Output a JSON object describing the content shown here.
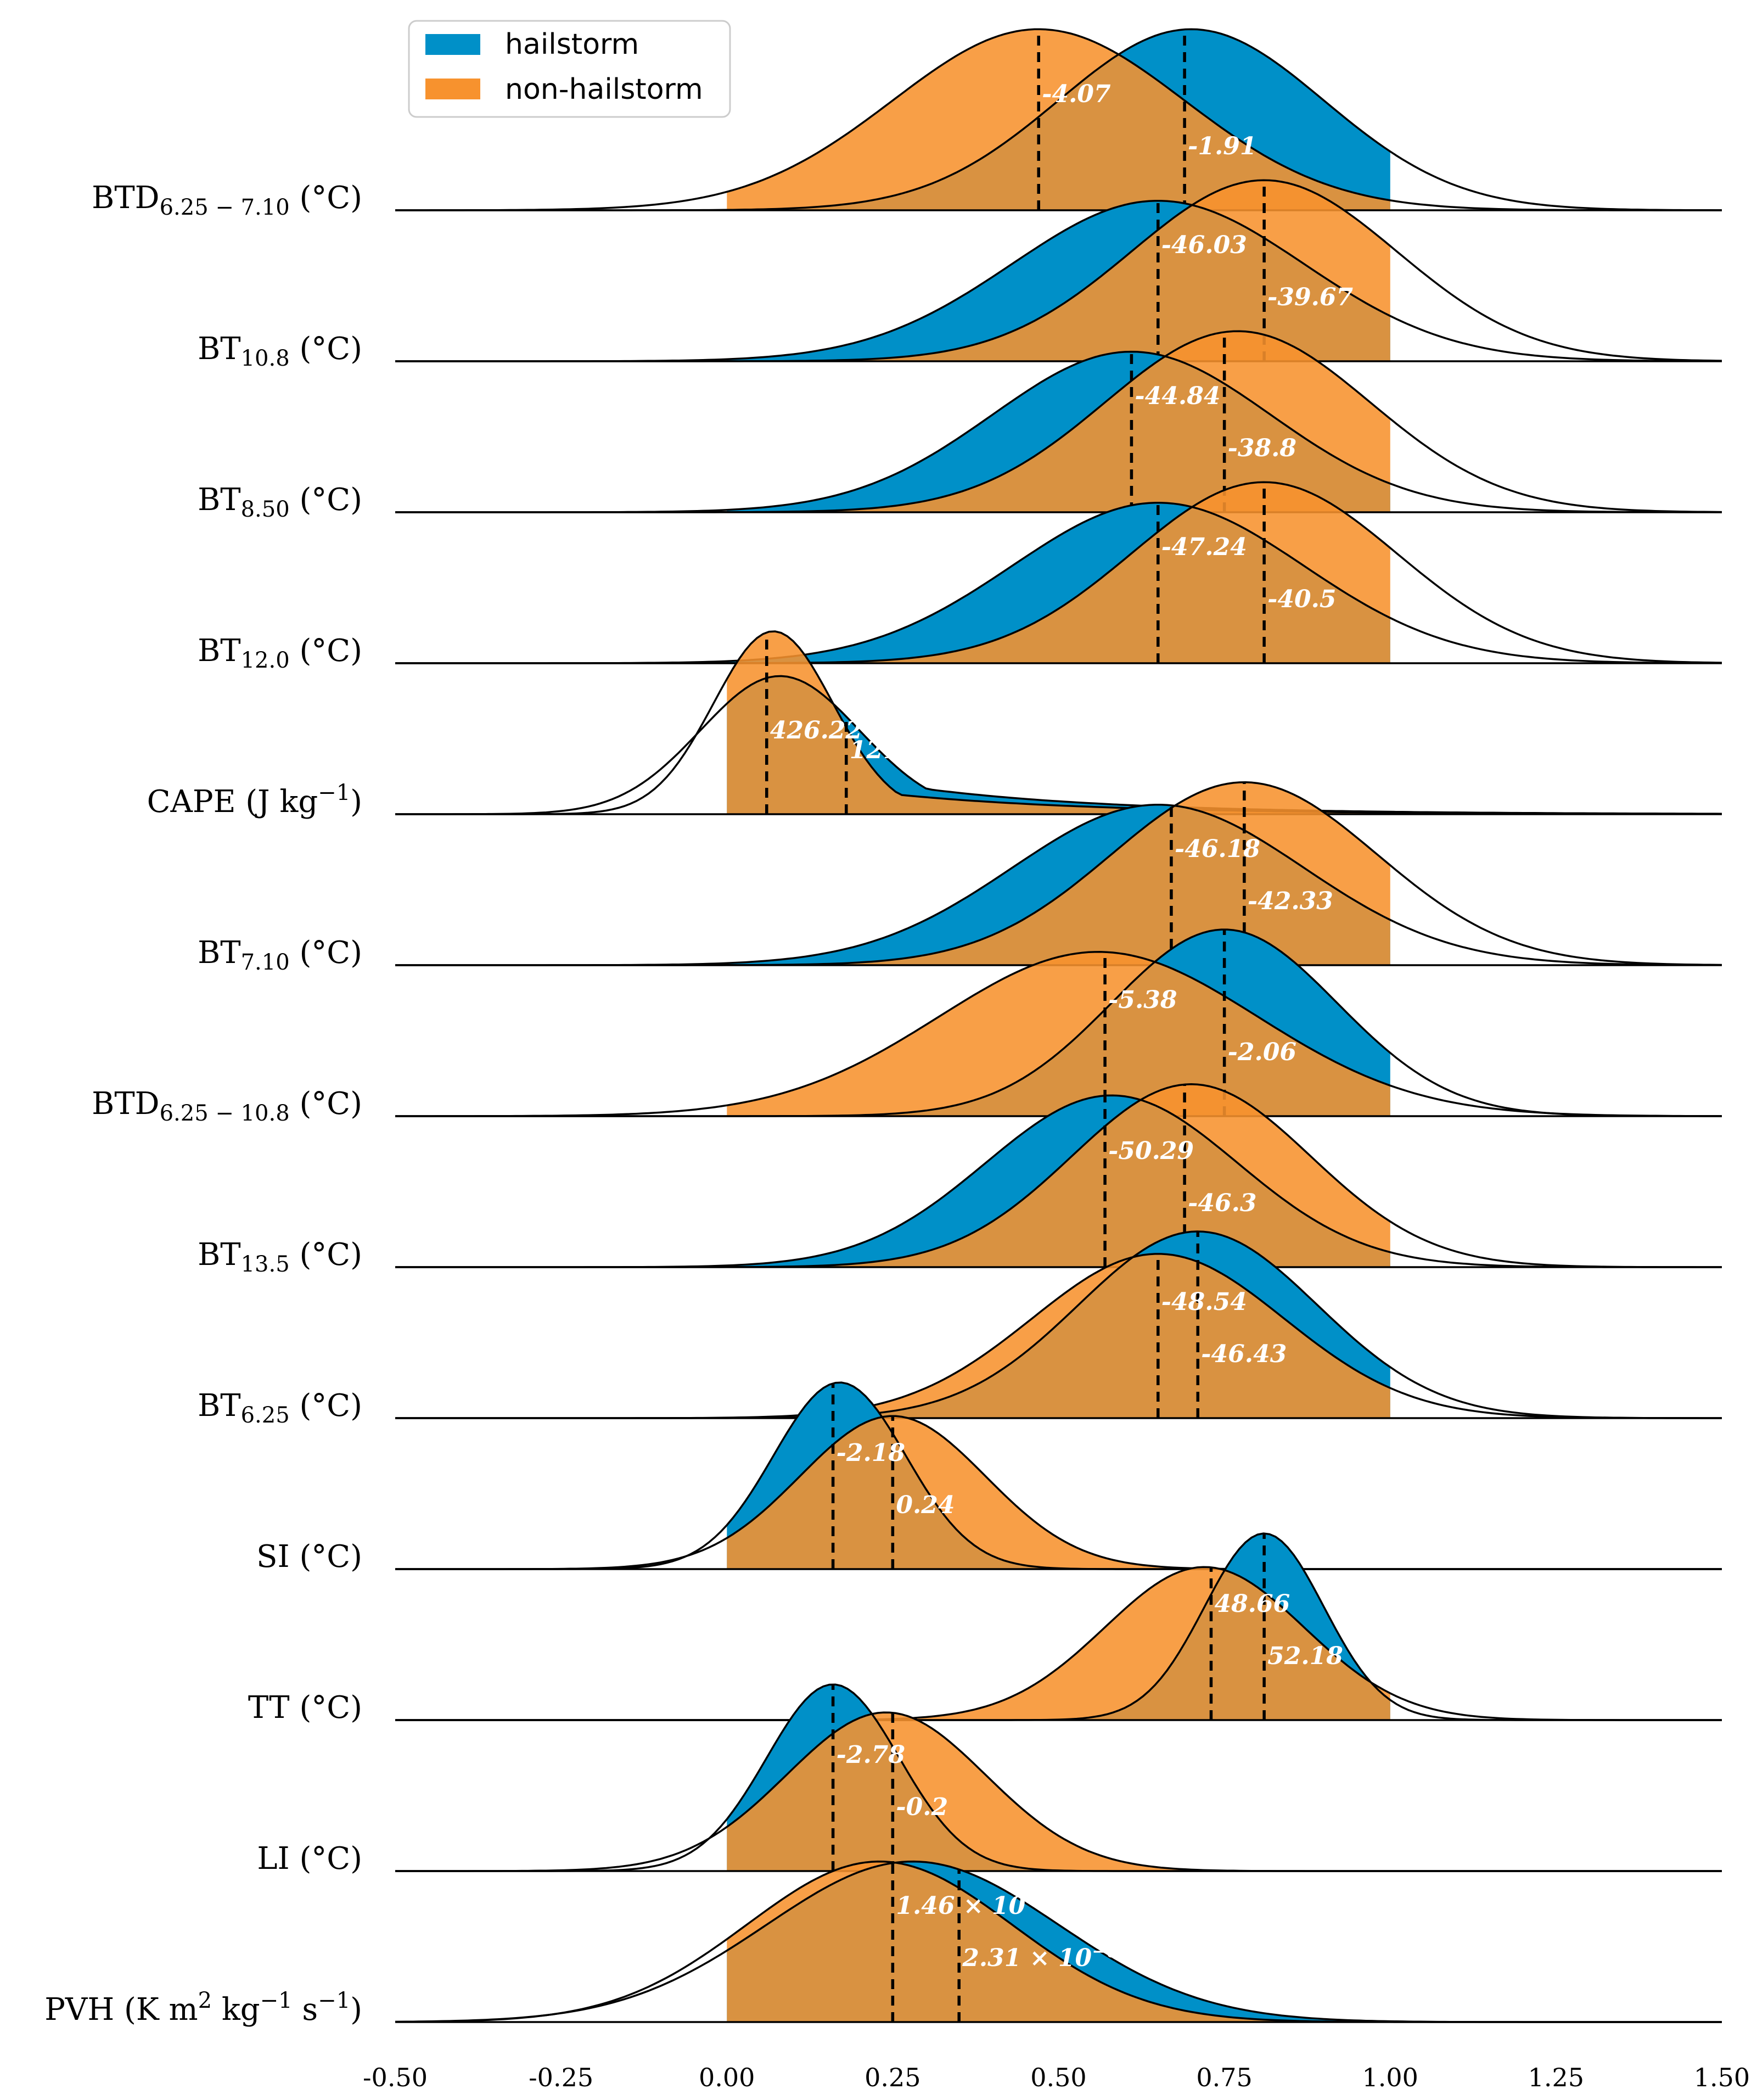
{
  "colors": {
    "hailstorm": "#0090c8",
    "non_hailstorm": "#f7922e"
  },
  "chart_data": {
    "type": "ridgeline",
    "title": "",
    "xlabel": "",
    "xlim": [
      -0.5,
      1.5
    ],
    "x_ticks": [
      "-0.50",
      "-0.25",
      "0.00",
      "0.25",
      "0.50",
      "0.75",
      "1.00",
      "1.25",
      "1.50"
    ],
    "legend": {
      "position": "top-left",
      "entries": [
        "hailstorm",
        "non-hailstorm"
      ]
    },
    "series_names": [
      "hailstorm",
      "non-hailstorm"
    ],
    "rows": [
      {
        "label": {
          "base": "BTD",
          "sub": "6.25 − 7.10",
          "unit": " (°C)"
        },
        "hail": {
          "peak": 0.7,
          "sd": 0.2,
          "height": 0.97,
          "median": 0.69,
          "label": "-1.91"
        },
        "non": {
          "peak": 0.47,
          "sd": 0.22,
          "height": 0.97,
          "median": 0.47,
          "label": "-4.07"
        }
      },
      {
        "label": {
          "base": "BT",
          "sub": "10.8",
          "unit": " (°C)"
        },
        "hail": {
          "peak": 0.65,
          "sd": 0.22,
          "height": 0.86,
          "median": 0.65,
          "label": "-46.03"
        },
        "non": {
          "peak": 0.81,
          "sd": 0.2,
          "height": 0.97,
          "median": 0.81,
          "label": "-39.67"
        }
      },
      {
        "label": {
          "base": "BT",
          "sub": "8.50",
          "unit": " (°C)"
        },
        "hail": {
          "peak": 0.61,
          "sd": 0.21,
          "height": 0.86,
          "median": 0.61,
          "label": "-44.84"
        },
        "non": {
          "peak": 0.77,
          "sd": 0.2,
          "height": 0.97,
          "median": 0.75,
          "label": "-38.8"
        }
      },
      {
        "label": {
          "base": "BT",
          "sub": "12.0",
          "unit": " (°C)"
        },
        "hail": {
          "peak": 0.65,
          "sd": 0.22,
          "height": 0.86,
          "median": 0.65,
          "label": "-47.24"
        },
        "non": {
          "peak": 0.81,
          "sd": 0.2,
          "height": 0.97,
          "median": 0.81,
          "label": "-40.5"
        }
      },
      {
        "label": {
          "base": "CAPE",
          "sub": "",
          "unit": " (J kg",
          "sup": "−1",
          "tail": ")"
        },
        "hail": {
          "peak": 0.08,
          "sd": 0.12,
          "height": 0.74,
          "tail": 0.38,
          "median": 0.18,
          "label": "1213.09"
        },
        "non": {
          "peak": 0.07,
          "sd": 0.09,
          "height": 0.98,
          "tail": 0.2,
          "median": 0.06,
          "label": "426.22"
        }
      },
      {
        "label": {
          "base": "BT",
          "sub": "7.10",
          "unit": " (°C)"
        },
        "hail": {
          "peak": 0.65,
          "sd": 0.22,
          "height": 0.86,
          "median": 0.67,
          "label": "-46.18"
        },
        "non": {
          "peak": 0.78,
          "sd": 0.2,
          "height": 0.98,
          "median": 0.78,
          "label": "-42.33"
        }
      },
      {
        "label": {
          "base": "BTD",
          "sub": "6.25 − 10.8",
          "unit": " (°C)"
        },
        "hail": {
          "peak": 0.75,
          "sd": 0.17,
          "height": 1.0,
          "median": 0.75,
          "label": "-2.06"
        },
        "non": {
          "peak": 0.56,
          "sd": 0.24,
          "height": 0.88,
          "median": 0.57,
          "label": "-5.38"
        }
      },
      {
        "label": {
          "base": "BT",
          "sub": "13.5",
          "unit": " (°C)"
        },
        "hail": {
          "peak": 0.58,
          "sd": 0.19,
          "height": 0.92,
          "median": 0.57,
          "label": "-50.29"
        },
        "non": {
          "peak": 0.7,
          "sd": 0.18,
          "height": 0.98,
          "median": 0.69,
          "label": "-46.3"
        }
      },
      {
        "label": {
          "base": "BT",
          "sub": "6.25",
          "unit": " (°C)"
        },
        "hail": {
          "peak": 0.71,
          "sd": 0.18,
          "height": 1.0,
          "median": 0.71,
          "label": "-46.43"
        },
        "non": {
          "peak": 0.65,
          "sd": 0.19,
          "height": 0.88,
          "median": 0.65,
          "label": "-48.54"
        }
      },
      {
        "label": {
          "base": "SI",
          "sub": "",
          "unit": " (°C)"
        },
        "hail": {
          "peak": 0.17,
          "sd": 0.1,
          "height": 1.0,
          "median": 0.16,
          "label": "-2.18"
        },
        "non": {
          "peak": 0.25,
          "sd": 0.14,
          "height": 0.82,
          "median": 0.25,
          "label": "0.24"
        }
      },
      {
        "label": {
          "base": "TT",
          "sub": "",
          "unit": " (°C)"
        },
        "hail": {
          "peak": 0.81,
          "sd": 0.09,
          "height": 1.0,
          "median": 0.81,
          "label": "52.18"
        },
        "non": {
          "peak": 0.72,
          "sd": 0.15,
          "height": 0.82,
          "median": 0.73,
          "label": "48.66"
        }
      },
      {
        "label": {
          "base": "LI",
          "sub": "",
          "unit": " (°C)"
        },
        "hail": {
          "peak": 0.16,
          "sd": 0.1,
          "height": 1.0,
          "median": 0.16,
          "label": "-2.78"
        },
        "non": {
          "peak": 0.24,
          "sd": 0.15,
          "height": 0.85,
          "median": 0.25,
          "label": "-0.2"
        }
      },
      {
        "label": {
          "base": "PVH",
          "sub": "",
          "unit": " (K m",
          "sup": "2",
          "mid": " kg",
          "sup2": "−1",
          "mid2": " s",
          "sup3": "−1",
          "tail": ")"
        },
        "hail": {
          "peak": 0.28,
          "sd": 0.22,
          "height": 0.86,
          "median": 0.35,
          "label_base": "2.31 × 10",
          "label_sup": "−6"
        },
        "non": {
          "peak": 0.23,
          "sd": 0.2,
          "height": 0.86,
          "median": 0.25,
          "label_base": "1.46 × 10",
          "label_sup": "−6"
        }
      }
    ]
  }
}
